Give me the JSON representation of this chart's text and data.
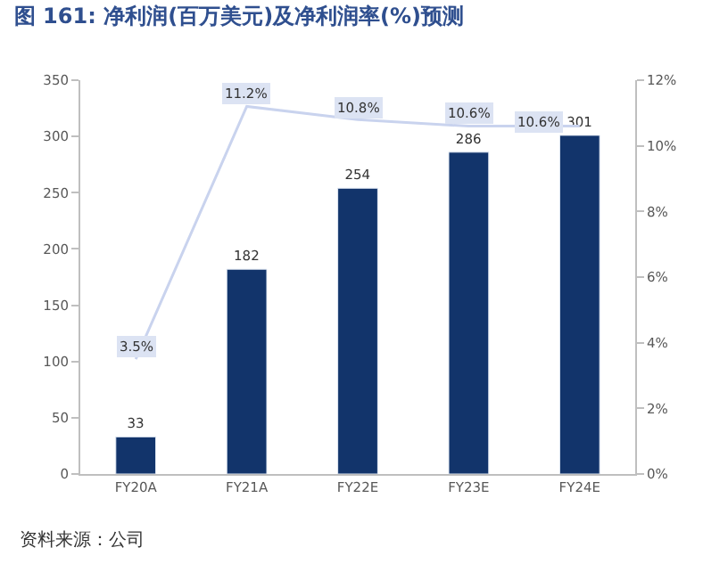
{
  "chart_data": {
    "type": "bar",
    "title": "图 161: 净利润(百万美元)及净利润率(%)预测",
    "categories": [
      "FY20A",
      "FY21A",
      "FY22E",
      "FY23E",
      "FY24E"
    ],
    "series": [
      {
        "color": "#12346b",
        "values": [
          33,
          182,
          254,
          286,
          301
        ],
        "value_labels": [
          "33",
          "182",
          "254",
          "286",
          "301"
        ]
      },
      {
        "type": "line",
        "axis": "y2",
        "color": "#c9d3ee",
        "values": [
          3.5,
          11.2,
          10.8,
          10.6,
          10.6
        ],
        "value_labels": [
          "3.5%",
          "11.2%",
          "10.8%",
          "10.6%",
          "10.6%"
        ]
      }
    ],
    "ylim": [
      0,
      350
    ],
    "yticks": [
      0,
      50,
      100,
      150,
      200,
      250,
      300,
      350
    ],
    "y2lim": [
      0,
      12
    ],
    "y2ticks": [
      {
        "value": 0,
        "label": "0%"
      },
      {
        "value": 2,
        "label": "2%"
      },
      {
        "value": 4,
        "label": "4%"
      },
      {
        "value": 6,
        "label": "6%"
      },
      {
        "value": 8,
        "label": "8%"
      },
      {
        "value": 10,
        "label": "10%"
      },
      {
        "value": 12,
        "label": "12%"
      }
    ],
    "legend": false,
    "marker": "none",
    "annotations": [
      "资料来源：公司"
    ]
  }
}
